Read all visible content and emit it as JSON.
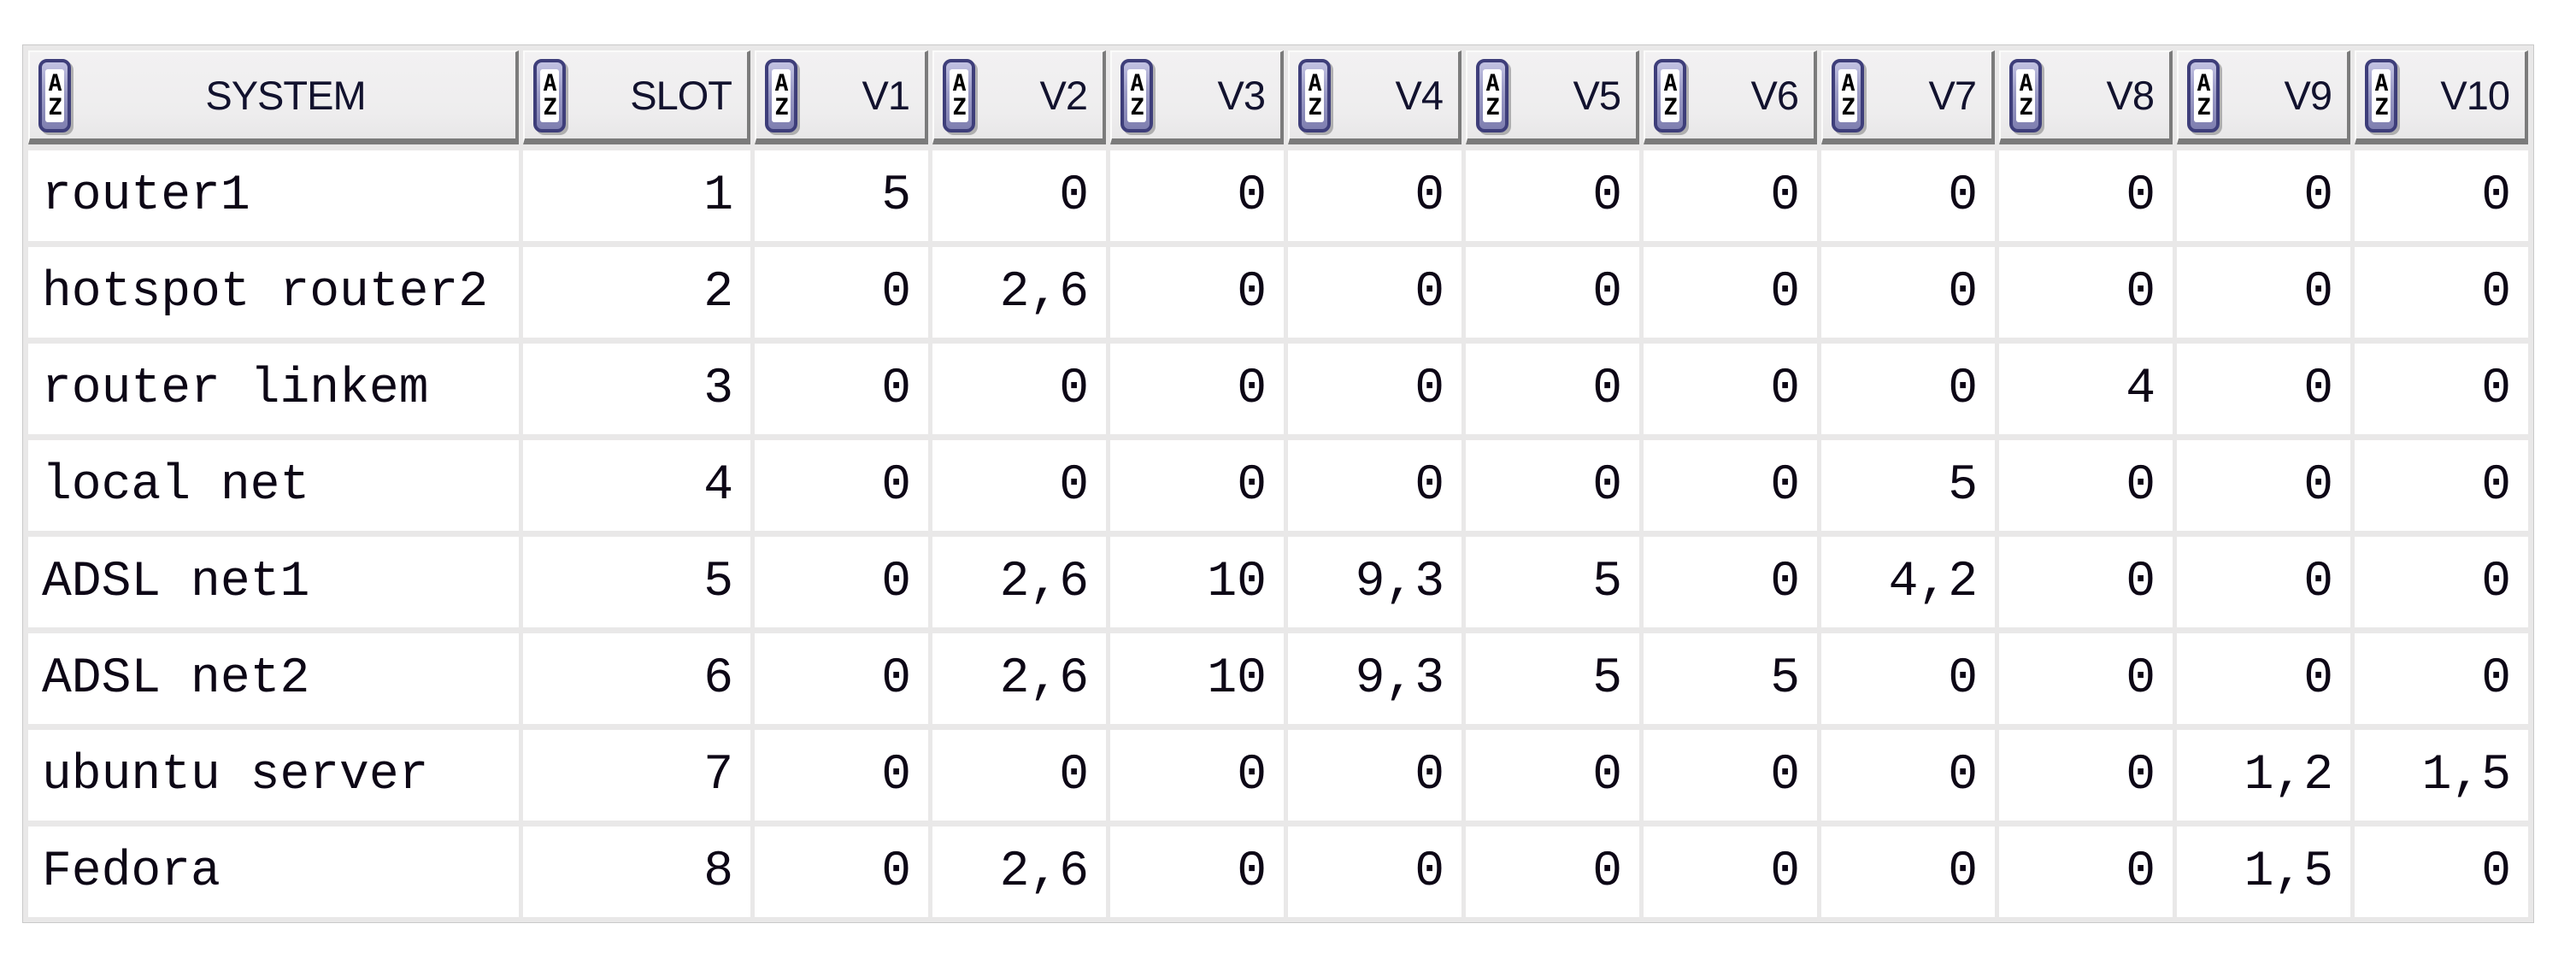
{
  "table": {
    "sort_icon": {
      "top": "A",
      "bottom": "Z"
    },
    "columns": [
      {
        "label": "SYSTEM",
        "type": "text"
      },
      {
        "label": "SLOT",
        "type": "number"
      },
      {
        "label": "V1",
        "type": "number"
      },
      {
        "label": "V2",
        "type": "number"
      },
      {
        "label": "V3",
        "type": "number"
      },
      {
        "label": "V4",
        "type": "number"
      },
      {
        "label": "V5",
        "type": "number"
      },
      {
        "label": "V6",
        "type": "number"
      },
      {
        "label": "V7",
        "type": "number"
      },
      {
        "label": "V8",
        "type": "number"
      },
      {
        "label": "V9",
        "type": "number"
      },
      {
        "label": "V10",
        "type": "number"
      }
    ],
    "rows": [
      {
        "cells": [
          "router1",
          "1",
          "5",
          "0",
          "0",
          "0",
          "0",
          "0",
          "0",
          "0",
          "0",
          "0"
        ]
      },
      {
        "cells": [
          "hotspot router2",
          "2",
          "0",
          "2,6",
          "0",
          "0",
          "0",
          "0",
          "0",
          "0",
          "0",
          "0"
        ]
      },
      {
        "cells": [
          "router linkem",
          "3",
          "0",
          "0",
          "0",
          "0",
          "0",
          "0",
          "0",
          "4",
          "0",
          "0"
        ]
      },
      {
        "cells": [
          "local net",
          "4",
          "0",
          "0",
          "0",
          "0",
          "0",
          "0",
          "5",
          "0",
          "0",
          "0"
        ]
      },
      {
        "cells": [
          "ADSL net1",
          "5",
          "0",
          "2,6",
          "10",
          "9,3",
          "5",
          "0",
          "4,2",
          "0",
          "0",
          "0"
        ]
      },
      {
        "cells": [
          "ADSL net2",
          "6",
          "0",
          "2,6",
          "10",
          "9,3",
          "5",
          "5",
          "0",
          "0",
          "0",
          "0"
        ]
      },
      {
        "cells": [
          "ubuntu server",
          "7",
          "0",
          "0",
          "0",
          "0",
          "0",
          "0",
          "0",
          "0",
          "1,2",
          "1,5"
        ]
      },
      {
        "cells": [
          "Fedora",
          "8",
          "0",
          "2,6",
          "0",
          "0",
          "0",
          "0",
          "0",
          "0",
          "1,5",
          "0"
        ]
      }
    ],
    "colors": {
      "gap_gray": "#e9e8e8",
      "header_bg": "#f0eff0",
      "header_shadow": "#7b7b7b",
      "icon_border": "#3e3e7a",
      "icon_fill": "#9c9cc6",
      "header_text": "#12122e",
      "body_text": "#0d0716",
      "cell_bg": "#ffffff"
    }
  }
}
